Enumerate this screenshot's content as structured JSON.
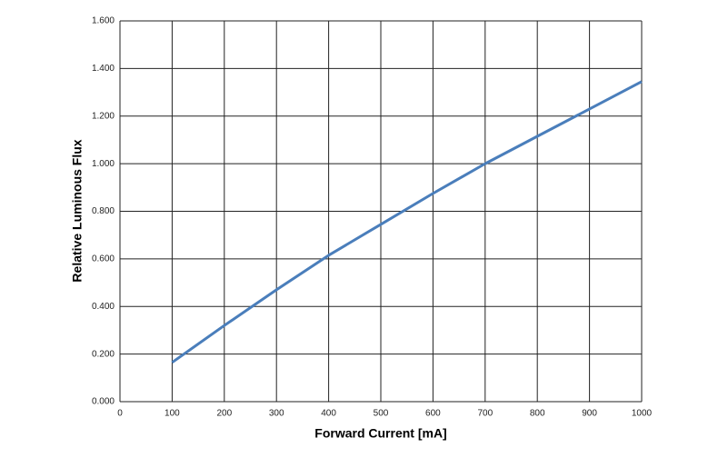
{
  "chart_data": {
    "type": "line",
    "x_label": "Forward Current [mA]",
    "y_label": "Relative Luminous Flux",
    "x": [
      100,
      200,
      300,
      400,
      500,
      600,
      700,
      800,
      900,
      1000
    ],
    "series": [
      {
        "name": "Relative Luminous Flux",
        "color": "#4a7ebb",
        "values": [
          0.165,
          0.32,
          0.47,
          0.615,
          0.745,
          0.875,
          1.0,
          1.115,
          1.23,
          1.345
        ]
      }
    ],
    "xlim": [
      0,
      1000
    ],
    "xticks": [
      0,
      100,
      200,
      300,
      400,
      500,
      600,
      700,
      800,
      900,
      1000
    ],
    "ylim": [
      0,
      1.6
    ],
    "yticks": [
      {
        "value": 0,
        "label": "0.000"
      },
      {
        "value": 0.2,
        "label": "0.200"
      },
      {
        "value": 0.4,
        "label": "0.400"
      },
      {
        "value": 0.6,
        "label": "0.600"
      },
      {
        "value": 0.8,
        "label": "0.800"
      },
      {
        "value": 1.0,
        "label": "1.000"
      },
      {
        "value": 1.2,
        "label": "1.200"
      },
      {
        "value": 1.4,
        "label": "1.400"
      },
      {
        "value": 1.6,
        "label": "1.600"
      }
    ],
    "grid": true
  }
}
